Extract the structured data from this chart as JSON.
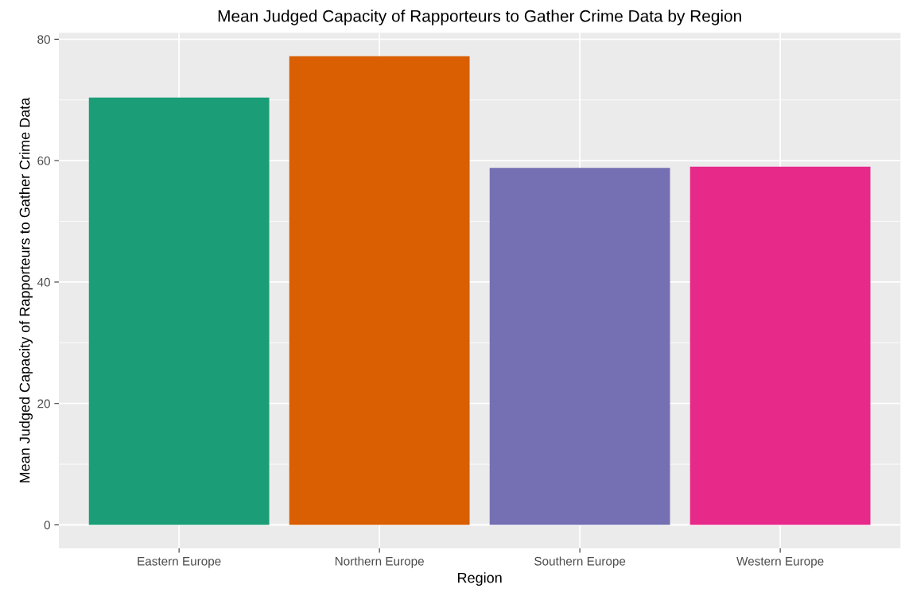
{
  "chart_data": {
    "type": "bar",
    "title": "Mean Judged Capacity of Rapporteurs to Gather Crime Data by Region",
    "xlabel": "Region",
    "ylabel": "Mean Judged Capacity of Rapporteurs to Gather Crime Data",
    "categories": [
      "Eastern Europe",
      "Northern Europe",
      "Southern Europe",
      "Western Europe"
    ],
    "values": [
      70.4,
      77.2,
      58.8,
      59.0
    ],
    "colors": [
      "#1b9e77",
      "#d95f02",
      "#7570b3",
      "#e7298a"
    ],
    "ylim": [
      -3.86,
      81.06
    ],
    "yticks": [
      0,
      20,
      40,
      60,
      80
    ],
    "grid": true,
    "legend": false
  }
}
